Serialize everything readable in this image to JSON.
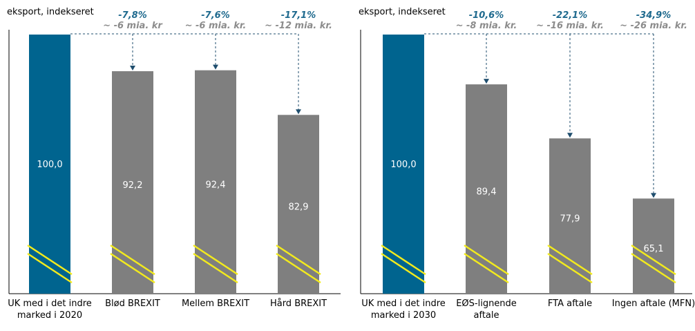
{
  "chart_data": [
    {
      "type": "bar",
      "ylabel": "eksport, indekseret",
      "ylim": [
        0,
        100
      ],
      "y_axis_break": true,
      "categories": [
        [
          "UK med i det indre",
          "marked i 2020"
        ],
        [
          "Blød BREXIT"
        ],
        [
          "Mellem BREXIT"
        ],
        [
          "Hård BREXIT"
        ]
      ],
      "values": [
        100.0,
        92.2,
        92.4,
        82.9
      ],
      "value_labels": [
        "100,0",
        "92,2",
        "92,4",
        "82,9"
      ],
      "annotations": [
        null,
        {
          "change": "-7,8%",
          "amount": "~ -6 mia. kr"
        },
        {
          "change": "-7,6%",
          "amount": "~ -6 mia. kr."
        },
        {
          "change": "-17,1%",
          "amount": "~ -12 mia. kr."
        }
      ]
    },
    {
      "type": "bar",
      "ylabel": "eksport, indekseret",
      "ylim": [
        0,
        100
      ],
      "y_axis_break": true,
      "categories": [
        [
          "UK med i det indre",
          "marked i 2030"
        ],
        [
          "EØS-lignende",
          "aftale"
        ],
        [
          "FTA aftale"
        ],
        [
          "Ingen aftale (MFN)"
        ]
      ],
      "values": [
        100.0,
        89.4,
        77.9,
        65.1
      ],
      "value_labels": [
        "100,0",
        "89,4",
        "77,9",
        "65,1"
      ],
      "annotations": [
        null,
        {
          "change": "-10,6%",
          "amount": "~ -8 mia. kr."
        },
        {
          "change": "-22,1%",
          "amount": "~ -16 mia. kr."
        },
        {
          "change": "-34,9%",
          "amount": "~ -26 mia. kr."
        }
      ]
    }
  ],
  "colors": {
    "baseline_bar": "#00648f",
    "scenario_bar": "#7f7f7f",
    "axis_break": "#f2ea1d",
    "arrow": "#1f4e6e",
    "change_text": "#1f6a8e",
    "amount_text": "#8c8c8c",
    "value_text": "#ffffff"
  }
}
